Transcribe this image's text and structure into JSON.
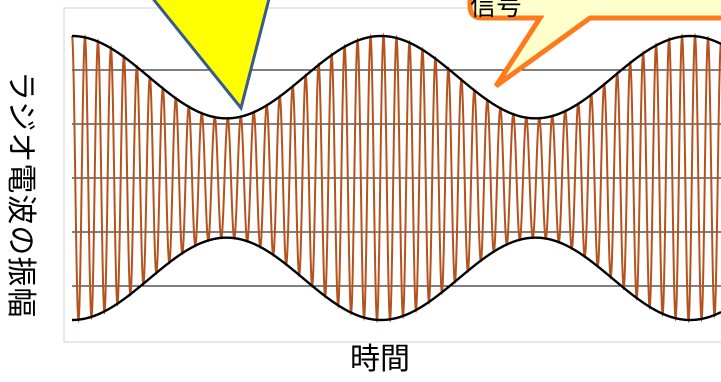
{
  "chart_data": {
    "type": "line",
    "title": "",
    "xlabel": "時間",
    "ylabel": "ラジオ電波の振幅",
    "grid": true,
    "ylim": [
      -1,
      1
    ],
    "series": [
      {
        "kind": "carrier",
        "color": "#b5531f",
        "cycles": 50
      },
      {
        "kind": "upper-envelope",
        "color": "#000000"
      },
      {
        "kind": "lower-envelope",
        "color": "#000000"
      }
    ],
    "envelope": {
      "min": 0.42,
      "max": 1.0,
      "periods_visible": 2.1
    }
  },
  "callouts": {
    "left": {
      "fill": "#ffff00",
      "stroke": "#3a5a8c",
      "text": ""
    },
    "right": {
      "fill": "#ffffcc",
      "stroke": "#ff7a1a",
      "text": "信号"
    }
  }
}
